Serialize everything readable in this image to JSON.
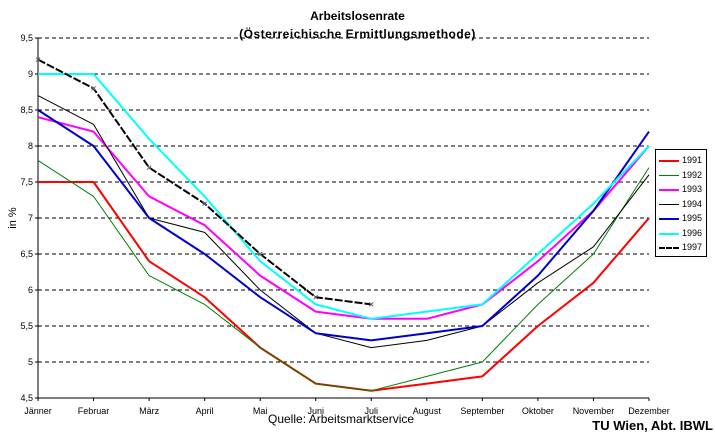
{
  "header": {
    "title": "Arbeitslosenrate",
    "subtitle": "(Österreichische Ermittlungsmethode)"
  },
  "footer": {
    "source": "Quelle: Arbeitsmarktservice",
    "credit": "TU Wien, Abt. IBWL"
  },
  "chart_data": {
    "type": "line",
    "title": "Arbeitslosenrate",
    "subtitle": "(Österreichische Ermittlungsmethode)",
    "xlabel": "",
    "ylabel": "in %",
    "ylim": [
      4.5,
      9.5
    ],
    "y_ticks": [
      "4,5",
      "5",
      "5,5",
      "6",
      "6,5",
      "7",
      "7,5",
      "8",
      "8,5",
      "9",
      "9,5"
    ],
    "grid": "horizontal dashed",
    "legend": "right",
    "categories": [
      "Jänner",
      "Februar",
      "März",
      "April",
      "Mai",
      "Juni",
      "Juli",
      "August",
      "September",
      "Oktober",
      "November",
      "Dezember"
    ],
    "series": [
      {
        "name": "1991",
        "color": "#ff0000",
        "width": 2,
        "values": [
          7.5,
          7.5,
          6.4,
          5.9,
          5.2,
          4.7,
          4.6,
          4.7,
          4.8,
          5.5,
          6.1,
          7.0
        ]
      },
      {
        "name": "1992",
        "color": "#008000",
        "width": 1,
        "values": [
          7.8,
          7.3,
          6.2,
          5.8,
          5.2,
          4.7,
          4.6,
          4.8,
          5.0,
          5.8,
          6.5,
          7.7
        ]
      },
      {
        "name": "1993",
        "color": "#ff00ff",
        "width": 2,
        "values": [
          8.4,
          8.2,
          7.3,
          6.9,
          6.2,
          5.7,
          5.6,
          5.6,
          5.8,
          6.4,
          7.1,
          8.0
        ]
      },
      {
        "name": "1994",
        "color": "#000000",
        "width": 1,
        "values": [
          8.7,
          8.3,
          7.0,
          6.8,
          6.0,
          5.4,
          5.2,
          5.3,
          5.5,
          6.1,
          6.6,
          7.6
        ]
      },
      {
        "name": "1995",
        "color": "#0000cc",
        "width": 2,
        "values": [
          8.5,
          8.0,
          7.0,
          6.5,
          5.9,
          5.4,
          5.3,
          5.4,
          5.5,
          6.2,
          7.1,
          8.2
        ]
      },
      {
        "name": "1996",
        "color": "#00ffff",
        "width": 2,
        "values": [
          9.0,
          9.0,
          8.1,
          7.3,
          6.4,
          5.8,
          5.6,
          5.7,
          5.8,
          6.5,
          7.2,
          8.0
        ]
      },
      {
        "name": "1997",
        "color": "#000000",
        "width": 2,
        "dashed": true,
        "marker": "x",
        "values": [
          9.2,
          8.8,
          7.7,
          7.2,
          6.5,
          5.9,
          5.8,
          null,
          null,
          null,
          null,
          null
        ]
      }
    ]
  }
}
